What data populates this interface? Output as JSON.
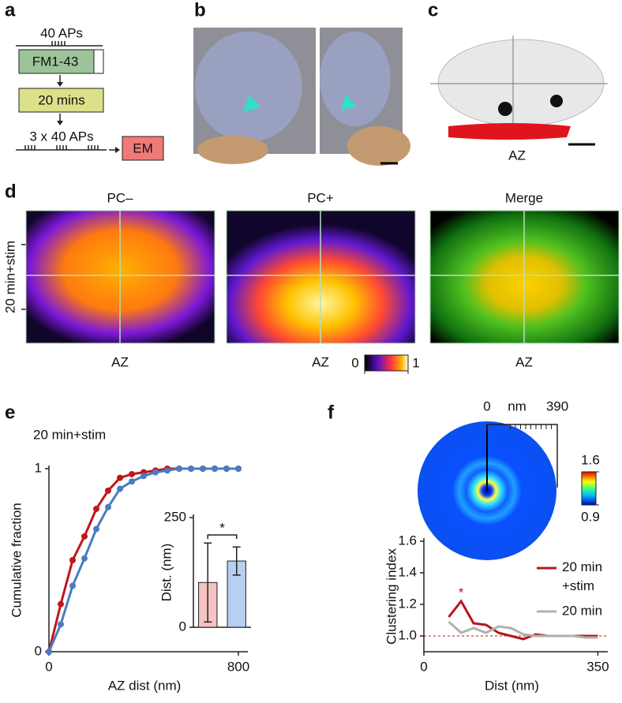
{
  "panel_labels": [
    "a",
    "b",
    "c",
    "d",
    "e",
    "f"
  ],
  "schematic": {
    "top": "40 APs",
    "box1": "FM1-43",
    "box2": "20 mins",
    "bottom": "3 x 40 APs",
    "box3": "EM"
  },
  "model_label": "AZ",
  "heatmaps": {
    "row_label": "20 min+stim",
    "titles": [
      "PC–",
      "PC+",
      "Merge"
    ],
    "x_labels": [
      "AZ",
      "AZ",
      "AZ"
    ],
    "colorbar_ticks": [
      0,
      1
    ]
  },
  "polar": {
    "scale_ticks": [
      0,
      390
    ],
    "scale_unit": "nm",
    "colorbar_ticks": [
      0.9,
      1.6
    ]
  },
  "chart_data": [
    {
      "type": "line",
      "title": "20 min+stim",
      "x_label": "AZ dist (nm)",
      "y_label": "Cumulative fraction",
      "x": [
        0,
        50,
        100,
        150,
        200,
        250,
        300,
        350,
        400,
        450,
        500,
        550,
        600,
        650,
        700,
        750,
        800
      ],
      "series": [
        {
          "color": "#c0161c",
          "values": [
            0,
            0.26,
            0.5,
            0.63,
            0.78,
            0.88,
            0.95,
            0.97,
            0.98,
            0.99,
            1,
            1,
            1,
            1,
            1,
            1,
            1
          ]
        },
        {
          "color": "#4a7cc0",
          "values": [
            0,
            0.15,
            0.36,
            0.51,
            0.67,
            0.79,
            0.89,
            0.93,
            0.96,
            0.98,
            0.99,
            1,
            1,
            1,
            1,
            1,
            1
          ]
        }
      ],
      "xlim": [
        0,
        840
      ],
      "ylim": [
        0,
        1
      ],
      "xticks": [
        0,
        800
      ],
      "yticks": [
        0,
        1
      ]
    },
    {
      "type": "bar",
      "y_label": "Dist. (nm)",
      "categories": [
        null,
        null
      ],
      "values": [
        102,
        151
      ],
      "errors": [
        90,
        32
      ],
      "colors": [
        "#f6c3c3",
        "#b7cff0"
      ],
      "ylim": [
        0,
        250
      ],
      "yticks": [
        0,
        250
      ],
      "annotation": "*"
    },
    {
      "type": "line",
      "x_label": "Dist (nm)",
      "y_label": "Clustering index",
      "x": [
        50,
        75,
        100,
        125,
        150,
        175,
        200,
        225,
        250,
        275,
        300,
        325,
        350
      ],
      "series": [
        {
          "name": "20 min +stim",
          "color": "#b3171d",
          "values": [
            1.12,
            1.22,
            1.08,
            1.07,
            1.02,
            1.0,
            0.98,
            1.01,
            1.0,
            1.0,
            1.0,
            1.0,
            1.0
          ]
        },
        {
          "name": "20 min",
          "color": "#b0b0b0",
          "values": [
            1.09,
            1.02,
            1.05,
            1.02,
            1.06,
            1.05,
            1.01,
            1.0,
            1.0,
            1.0,
            1.0,
            0.99,
            0.99
          ]
        }
      ],
      "xlim": [
        0,
        370
      ],
      "ylim": [
        0.9,
        1.6
      ],
      "xticks": [
        0,
        350
      ],
      "yticks": [
        {
          "value": 1.0,
          "label": "1.0"
        },
        1.2,
        1.4,
        1.6
      ],
      "reference_line": 1.0,
      "annotation": "*",
      "annotation_x": 75,
      "annotation_y": 1.27,
      "legend": "upper right"
    }
  ]
}
